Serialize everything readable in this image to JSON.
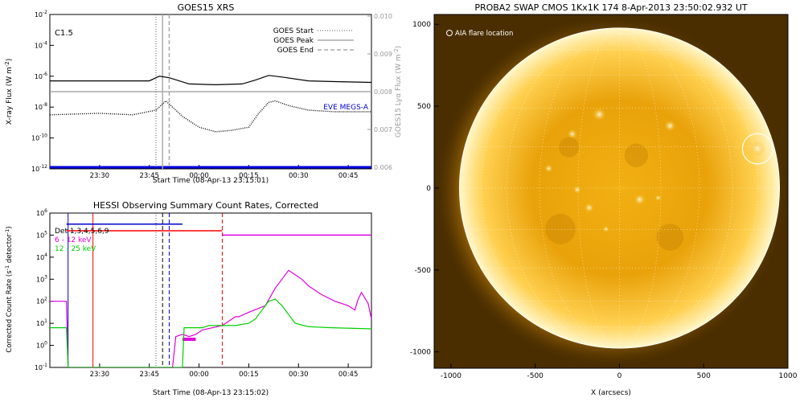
{
  "figure": "solar flare summary",
  "chart_data": [
    {
      "type": "line",
      "panel": "top-left",
      "title": "GOES15 XRS",
      "xlabel": "Start Time (08-Apr-13 23:15:01)",
      "ylabel": "X-ray Flux (W m^-2)",
      "ylabel_right": "GOES15 Lyα Flux (W m^-2)",
      "xlim_minutes": [
        0,
        97
      ],
      "x_ticks": [
        "23:30",
        "23:45",
        "00:00",
        "00:15",
        "00:30",
        "00:45"
      ],
      "y_ticks": [
        "10^-2",
        "10^-4",
        "10^-6",
        "10^-8",
        "10^-10",
        "10^-12"
      ],
      "y2_ticks": [
        "0.010",
        "0.009",
        "0.008",
        "0.007",
        "0.006"
      ],
      "log_y": true,
      "ylim_exp": [
        -12,
        -2
      ],
      "flare_class": "C1.5",
      "legend": [
        {
          "name": "GOES Start",
          "style": "dotted",
          "color": "#555555"
        },
        {
          "name": "GOES Peak",
          "style": "solid",
          "color": "#aaaaaa"
        },
        {
          "name": "GOES End",
          "style": "dashed",
          "color": "#aaaaaa"
        }
      ],
      "legend_placement": "top-right",
      "markers_min": {
        "start": 32,
        "peak": 34,
        "end": 36
      },
      "series": [
        {
          "name": "long",
          "color": "#000000",
          "x": [
            0,
            30,
            33,
            36,
            42,
            50,
            58,
            62,
            66,
            70,
            78,
            86,
            97
          ],
          "y": [
            -6.3,
            -6.3,
            -6.0,
            -6.1,
            -6.5,
            -6.55,
            -6.5,
            -6.25,
            -5.95,
            -6.05,
            -6.3,
            -6.35,
            -6.4
          ]
        },
        {
          "name": "short",
          "color": "#000000",
          "style": "dotted",
          "x": [
            0,
            15,
            25,
            32,
            35,
            40,
            45,
            50,
            55,
            60,
            63,
            66,
            68,
            72,
            78,
            86,
            97
          ],
          "y": [
            -8.5,
            -8.4,
            -8.5,
            -8.2,
            -7.6,
            -8.6,
            -9.3,
            -9.6,
            -9.5,
            -9.3,
            -8.4,
            -7.7,
            -7.6,
            -7.9,
            -8.2,
            -8.3,
            -8.3
          ]
        }
      ],
      "lya_level": 0.008,
      "eve_label": "EVE MEGS-A"
    },
    {
      "type": "line",
      "panel": "bottom-left",
      "title": "HESSI Observing Summary Count Rates, Corrected",
      "xlabel": "Start Time (08-Apr-13 23:15:02)",
      "ylabel": "Corrected Count Rate (s^-1 detector^-1)",
      "xlim_minutes": [
        0,
        97
      ],
      "x_ticks": [
        "23:30",
        "23:45",
        "00:00",
        "00:15",
        "00:30",
        "00:45"
      ],
      "y_ticks": [
        "10^6",
        "10^5",
        "10^4",
        "10^3",
        "10^2",
        "10^1",
        "10^0",
        "10^-1"
      ],
      "log_y": true,
      "ylim_exp": [
        -1,
        6
      ],
      "legend": [
        {
          "name": "Det 1,3,4,5,6,9",
          "color": "#000000"
        },
        {
          "name": "6 - 12 keV",
          "color": "#e000e0"
        },
        {
          "name": "12 - 25 keV",
          "color": "#00d000"
        }
      ],
      "legend_placement": "top-left",
      "series": [
        {
          "name": "6 - 12 keV",
          "color": "#e000e0",
          "x": [
            0,
            5,
            5.5,
            37,
            38,
            40,
            42,
            44,
            46,
            52,
            54,
            56,
            57,
            60,
            65,
            68,
            70,
            72,
            74,
            76,
            78,
            82,
            86,
            90,
            92,
            93,
            94,
            96,
            97
          ],
          "y": [
            2.0,
            2.0,
            -1,
            -1,
            0.4,
            0.5,
            0.4,
            0.5,
            0.7,
            0.9,
            1.1,
            1.3,
            1.3,
            1.5,
            1.8,
            2.6,
            3.0,
            3.4,
            3.2,
            3.0,
            2.7,
            2.3,
            2.0,
            1.8,
            1.6,
            2.1,
            2.4,
            1.9,
            1.2
          ]
        },
        {
          "name": "12 - 25 keV",
          "color": "#00d000",
          "x": [
            0,
            5,
            5.5,
            40,
            40.5,
            46,
            48,
            52,
            56,
            60,
            62,
            64,
            66,
            68,
            70,
            72,
            74,
            78,
            85,
            97
          ],
          "y": [
            0.8,
            0.8,
            -1,
            -1,
            0.8,
            0.8,
            0.9,
            0.9,
            0.9,
            1.0,
            1.2,
            1.6,
            2.0,
            2.1,
            1.8,
            1.4,
            1.0,
            0.85,
            0.8,
            0.75
          ]
        }
      ],
      "attenuator_levels": [
        {
          "color": "#0000cc",
          "x0": 5,
          "x1": 40,
          "y": 5.5
        },
        {
          "color": "#ff0000",
          "x0": 5,
          "x1": 52,
          "y": 5.2
        },
        {
          "color": "#e000e0",
          "x0": 52,
          "x1": 97,
          "y": 5.0
        }
      ],
      "vlines_min": [
        {
          "x": 5.5,
          "color": "#0000cc",
          "style": "solid"
        },
        {
          "x": 13,
          "color": "#ff0000",
          "style": "solid"
        },
        {
          "x": 32,
          "color": "#555555",
          "style": "dotted"
        },
        {
          "x": 34,
          "color": "#000000",
          "style": "dashed"
        },
        {
          "x": 36,
          "color": "#0000cc",
          "style": "dashed"
        },
        {
          "x": 52,
          "color": "#ff0000",
          "style": "dashed"
        }
      ]
    },
    {
      "type": "image",
      "panel": "right",
      "title": "PROBA2 SWAP CMOS 1Kx1K 174   8-Apr-2013 23:50:02.932 UT",
      "xlabel": "X (arcsecs)",
      "x_ticks": [
        -1000,
        -500,
        0,
        500,
        1000
      ],
      "y_ticks": [
        1000,
        500,
        0,
        -500,
        -1000
      ],
      "xlim": [
        -1100,
        1000
      ],
      "ylim": [
        -1100,
        1060
      ],
      "legend": "AIA flare location",
      "flare_location": {
        "x": 820,
        "y": 240,
        "r": 90
      },
      "solar_radius_arcsec": 950,
      "grid": true
    }
  ]
}
